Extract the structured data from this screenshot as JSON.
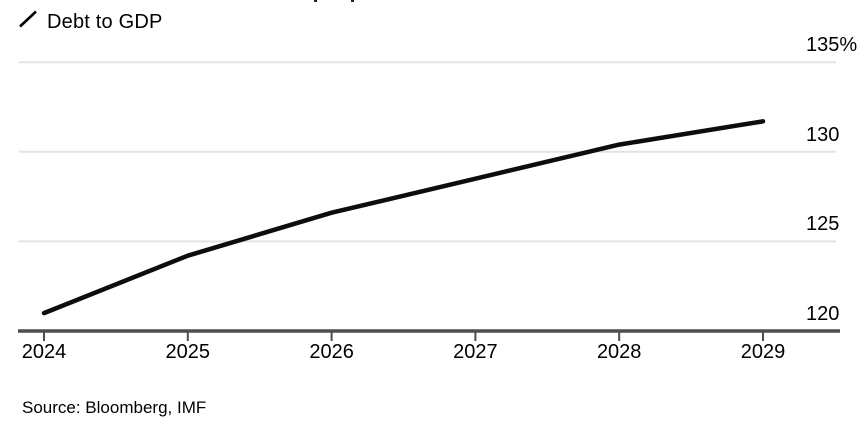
{
  "legend": {
    "label": "Debt to GDP",
    "marker": "diagonal-line"
  },
  "source": "Source: Bloomberg, IMF",
  "colors": {
    "line": "#0d0d0d",
    "grid": "#e3e3e3",
    "axis": "#4d4d4d",
    "text": "#000000",
    "background": "#ffffff"
  },
  "chart_data": {
    "type": "line",
    "title": "",
    "series": [
      {
        "name": "Debt to GDP",
        "values": [
          121.0,
          124.2,
          126.6,
          128.5,
          130.4,
          131.7
        ]
      }
    ],
    "x": [
      2024,
      2025,
      2026,
      2027,
      2028,
      2029
    ],
    "x_tick_labels": [
      "2024",
      "2025",
      "2026",
      "2027",
      "2028",
      "2029"
    ],
    "unit": "%",
    "ylim": [
      120,
      135
    ],
    "y_ticks": [
      120,
      125,
      130,
      135
    ],
    "y_tick_labels": [
      "120",
      "125",
      "130",
      "135%"
    ],
    "grid": "horizontal-only",
    "legend_position": "top-left",
    "xlabel": "",
    "ylabel": ""
  }
}
